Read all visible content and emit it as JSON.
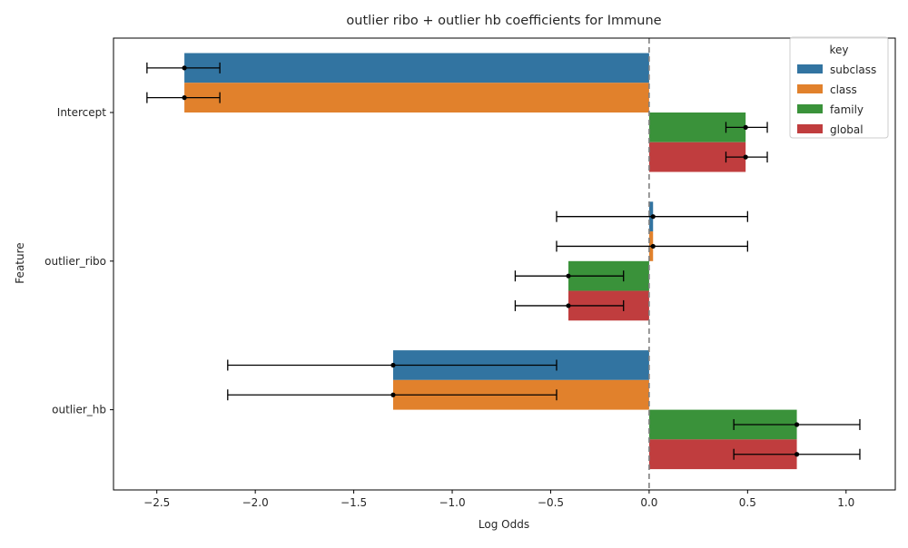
{
  "chart_data": {
    "type": "bar",
    "orientation": "horizontal",
    "title": "outlier ribo + outlier hb coefficients for Immune",
    "xlabel": "Log Odds",
    "ylabel": "Feature",
    "xlim": [
      -2.72,
      1.25
    ],
    "x_ticks": [
      -2.5,
      -2.0,
      -1.5,
      -1.0,
      -0.5,
      0.0,
      0.5,
      1.0
    ],
    "x_tick_labels": [
      "−2.5",
      "−2.0",
      "−1.5",
      "−1.0",
      "−0.5",
      "0.0",
      "0.5",
      "1.0"
    ],
    "categories": [
      "Intercept",
      "outlier_ribo",
      "outlier_hb"
    ],
    "legend": {
      "title": "key",
      "placement": "top-right"
    },
    "reference_line": {
      "x": 0,
      "style": "dashed"
    },
    "grid": false,
    "series": [
      {
        "name": "subclass",
        "color": "#3274a1",
        "values": [
          -2.36,
          0.02,
          -1.3
        ],
        "ci_low": [
          -2.55,
          -0.47,
          -2.14
        ],
        "ci_high": [
          -2.18,
          0.5,
          -0.47
        ]
      },
      {
        "name": "class",
        "color": "#e1812c",
        "values": [
          -2.36,
          0.02,
          -1.3
        ],
        "ci_low": [
          -2.55,
          -0.47,
          -2.14
        ],
        "ci_high": [
          -2.18,
          0.5,
          -0.47
        ]
      },
      {
        "name": "family",
        "color": "#3a923a",
        "values": [
          0.49,
          -0.41,
          0.75
        ],
        "ci_low": [
          0.39,
          -0.68,
          0.43
        ],
        "ci_high": [
          0.6,
          -0.13,
          1.07
        ]
      },
      {
        "name": "global",
        "color": "#c03d3e",
        "values": [
          0.49,
          -0.41,
          0.75
        ],
        "ci_low": [
          0.39,
          -0.68,
          0.43
        ],
        "ci_high": [
          0.6,
          -0.13,
          1.07
        ]
      }
    ]
  }
}
